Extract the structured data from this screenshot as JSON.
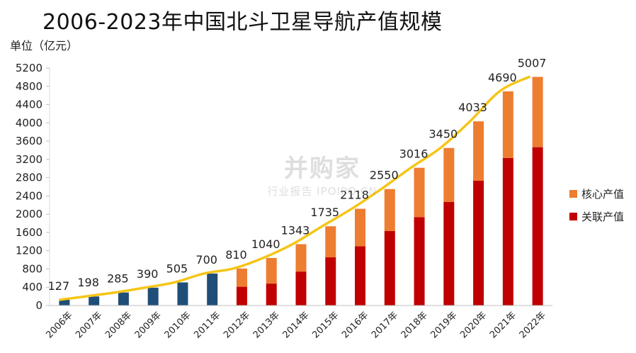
{
  "title": "2006-2023年中国北斗卫星导航产值规模",
  "watermark": {
    "main": "并购家",
    "sub": "行业报告 IPOIPO.CN"
  },
  "colors": {
    "early": "#1f4e79",
    "core": "#ed7d31",
    "related": "#c00000",
    "trend": "#f5c518"
  },
  "chart_data": {
    "type": "bar",
    "title": "2006-2023年中国北斗卫星导航产值规模",
    "ylabel": "单位（亿元）",
    "ylim": [
      0,
      5200
    ],
    "yticks": [
      0,
      400,
      800,
      1200,
      1600,
      2000,
      2400,
      2800,
      3200,
      3600,
      4000,
      4400,
      4800,
      5200
    ],
    "categories": [
      "2006年",
      "2007年",
      "2008年",
      "2009年",
      "2010年",
      "2011年",
      "2012年",
      "2013年",
      "2014年",
      "2015年",
      "2016年",
      "2017年",
      "2018年",
      "2019年",
      "2020年",
      "2021年",
      "2022年"
    ],
    "totals": [
      127,
      198,
      285,
      390,
      505,
      700,
      810,
      1040,
      1343,
      1735,
      2118,
      2550,
      3016,
      3450,
      4033,
      4690,
      5007
    ],
    "series": [
      {
        "name": "核心产值",
        "values": [
          null,
          null,
          null,
          null,
          null,
          null,
          400,
          560,
          600,
          680,
          820,
          920,
          1080,
          1180,
          1300,
          1460,
          1540
        ]
      },
      {
        "name": "关联产值",
        "values": [
          null,
          null,
          null,
          null,
          null,
          null,
          410,
          480,
          743,
          1055,
          1298,
          1630,
          1936,
          2270,
          2733,
          3230,
          3467
        ]
      }
    ],
    "grid": false,
    "legend": "right"
  }
}
